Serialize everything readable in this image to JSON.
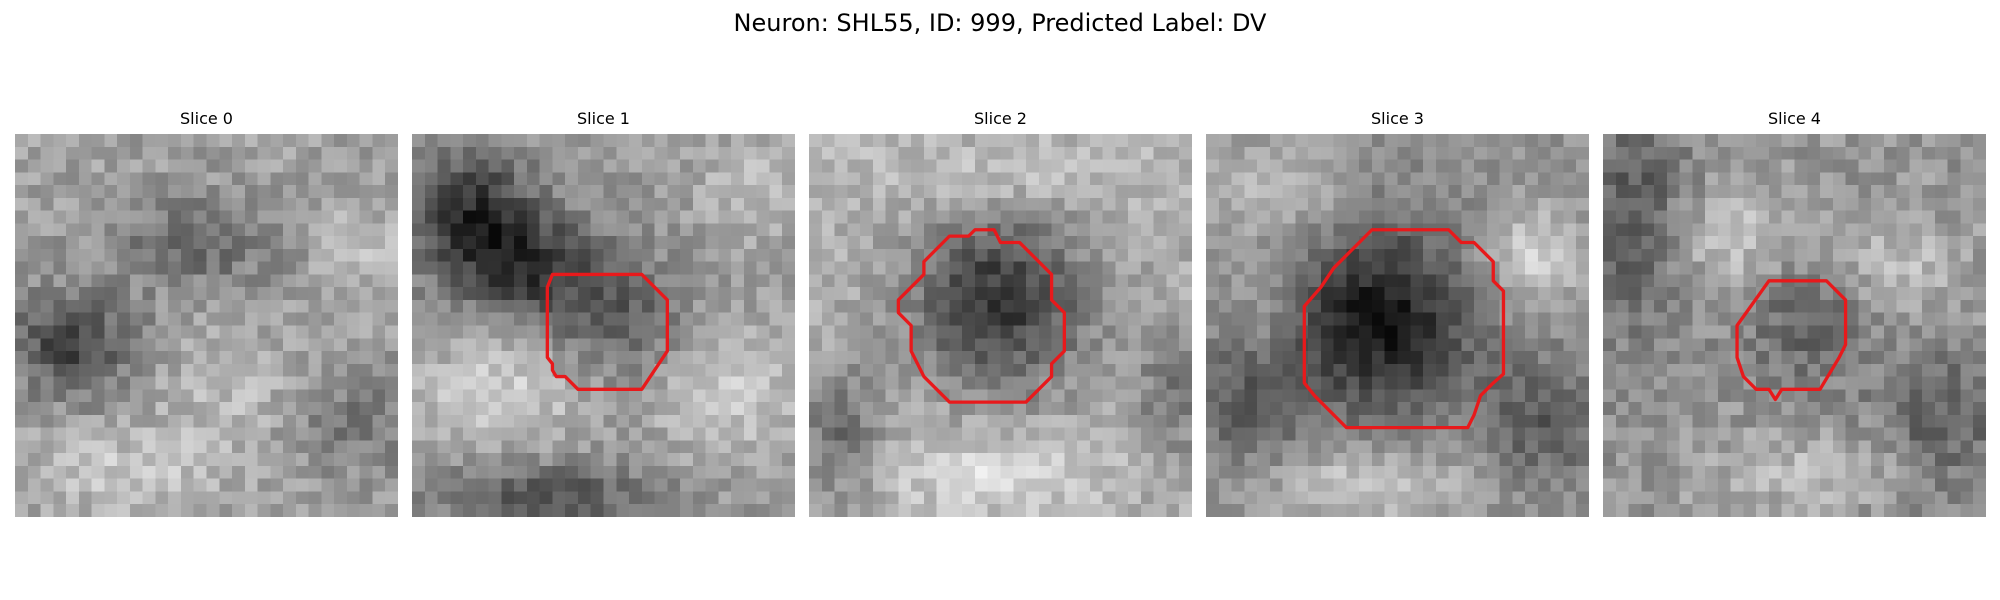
{
  "figure": {
    "suptitle": "Neuron: SHL55, ID: 999, Predicted Label: DV",
    "colormap": "gray",
    "outline_color": "#e8191b"
  },
  "panels": [
    {
      "title": "Slice 0",
      "has_outline": false
    },
    {
      "title": "Slice 1",
      "has_outline": true
    },
    {
      "title": "Slice 2",
      "has_outline": true
    },
    {
      "title": "Slice 3",
      "has_outline": true
    },
    {
      "title": "Slice 4",
      "has_outline": true
    }
  ]
}
